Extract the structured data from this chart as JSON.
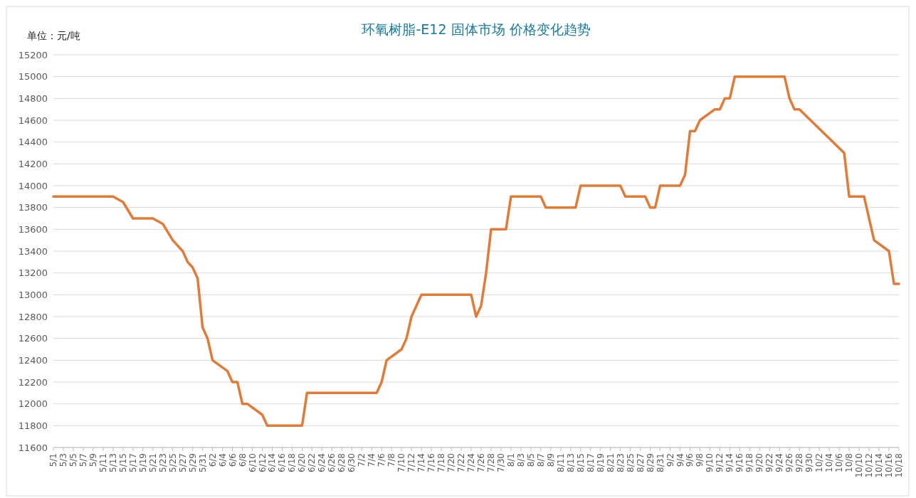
{
  "chart_data": {
    "type": "line",
    "title": "环氧树脂-E12 固体市场 价格变化趋势",
    "annotations": [
      "单位：元/吨"
    ],
    "x": [
      "--05-01",
      "--05-13",
      "--05-15",
      "--05-17",
      "--05-21",
      "--05-23",
      "--05-25",
      "--05-27",
      "--05-28",
      "--05-29",
      "--05-30",
      "--05-31",
      "--06-01",
      "--06-02",
      "--06-05",
      "--06-06",
      "--06-07",
      "--06-08",
      "--06-09",
      "--06-12",
      "--06-13",
      "--06-20",
      "--06-21",
      "--07-05",
      "--07-06",
      "--07-07",
      "--07-10",
      "--07-11",
      "--07-12",
      "--07-14",
      "--07-24",
      "--07-25",
      "--07-26",
      "--07-27",
      "--07-28",
      "--07-31",
      "--08-01",
      "--08-07",
      "--08-08",
      "--08-14",
      "--08-15",
      "--08-23",
      "--08-24",
      "--08-28",
      "--08-29",
      "--08-30",
      "--08-31",
      "--09-04",
      "--09-05",
      "--09-06",
      "--09-07",
      "--09-08",
      "--09-11",
      "--09-12",
      "--09-13",
      "--09-14",
      "--09-15",
      "--09-25",
      "--09-26",
      "--09-27",
      "--09-28",
      "--10-07",
      "--10-08",
      "--10-11",
      "--10-13",
      "--10-16",
      "--10-17",
      "--10-18"
    ],
    "series": [
      {
        "color": "#e07b39",
        "values": [
          13900,
          13900,
          13850,
          13700,
          13700,
          13650,
          13500,
          13400,
          13300,
          13250,
          13150,
          12700,
          12600,
          12400,
          12300,
          12200,
          12200,
          12000,
          12000,
          11900,
          11800,
          11800,
          12100,
          12100,
          12200,
          12400,
          12500,
          12600,
          12800,
          13000,
          13000,
          12800,
          12900,
          13200,
          13600,
          13600,
          13900,
          13900,
          13800,
          13800,
          14000,
          14000,
          13900,
          13900,
          13800,
          13800,
          14000,
          14000,
          14100,
          14500,
          14500,
          14600,
          14700,
          14700,
          14800,
          14800,
          15000,
          15000,
          14800,
          14700,
          14700,
          14300,
          13900,
          13900,
          13500,
          13400,
          13100,
          13100
        ]
      }
    ],
    "xlim": [
      "--05-01",
      "--10-18"
    ],
    "xticks": [
      {
        "value": "--05-01",
        "label": "5/1"
      },
      {
        "value": "--05-03",
        "label": "5/3"
      },
      {
        "value": "--05-05",
        "label": "5/5"
      },
      {
        "value": "--05-07",
        "label": "5/7"
      },
      {
        "value": "--05-09",
        "label": "5/9"
      },
      {
        "value": "--05-11",
        "label": "5/11"
      },
      {
        "value": "--05-13",
        "label": "5/13"
      },
      {
        "value": "--05-15",
        "label": "5/15"
      },
      {
        "value": "--05-17",
        "label": "5/17"
      },
      {
        "value": "--05-19",
        "label": "5/19"
      },
      {
        "value": "--05-21",
        "label": "5/21"
      },
      {
        "value": "--05-23",
        "label": "5/23"
      },
      {
        "value": "--05-25",
        "label": "5/25"
      },
      {
        "value": "--05-27",
        "label": "5/27"
      },
      {
        "value": "--05-29",
        "label": "5/29"
      },
      {
        "value": "--05-31",
        "label": "5/31"
      },
      {
        "value": "--06-02",
        "label": "6/2"
      },
      {
        "value": "--06-04",
        "label": "6/4"
      },
      {
        "value": "--06-06",
        "label": "6/6"
      },
      {
        "value": "--06-08",
        "label": "6/8"
      },
      {
        "value": "--06-10",
        "label": "6/10"
      },
      {
        "value": "--06-12",
        "label": "6/12"
      },
      {
        "value": "--06-14",
        "label": "6/14"
      },
      {
        "value": "--06-16",
        "label": "6/16"
      },
      {
        "value": "--06-18",
        "label": "6/18"
      },
      {
        "value": "--06-20",
        "label": "6/20"
      },
      {
        "value": "--06-22",
        "label": "6/22"
      },
      {
        "value": "--06-24",
        "label": "6/24"
      },
      {
        "value": "--06-26",
        "label": "6/26"
      },
      {
        "value": "--06-28",
        "label": "6/28"
      },
      {
        "value": "--06-30",
        "label": "6/30"
      },
      {
        "value": "--07-02",
        "label": "7/2"
      },
      {
        "value": "--07-04",
        "label": "7/4"
      },
      {
        "value": "--07-06",
        "label": "7/6"
      },
      {
        "value": "--07-08",
        "label": "7/8"
      },
      {
        "value": "--07-10",
        "label": "7/10"
      },
      {
        "value": "--07-12",
        "label": "7/12"
      },
      {
        "value": "--07-14",
        "label": "7/14"
      },
      {
        "value": "--07-16",
        "label": "7/16"
      },
      {
        "value": "--07-18",
        "label": "7/18"
      },
      {
        "value": "--07-20",
        "label": "7/20"
      },
      {
        "value": "--07-22",
        "label": "7/22"
      },
      {
        "value": "--07-24",
        "label": "7/24"
      },
      {
        "value": "--07-26",
        "label": "7/26"
      },
      {
        "value": "--07-28",
        "label": "7/28"
      },
      {
        "value": "--07-30",
        "label": "7/30"
      },
      {
        "value": "--08-01",
        "label": "8/1"
      },
      {
        "value": "--08-03",
        "label": "8/3"
      },
      {
        "value": "--08-05",
        "label": "8/5"
      },
      {
        "value": "--08-07",
        "label": "8/7"
      },
      {
        "value": "--08-09",
        "label": "8/9"
      },
      {
        "value": "--08-11",
        "label": "8/11"
      },
      {
        "value": "--08-13",
        "label": "8/13"
      },
      {
        "value": "--08-15",
        "label": "8/15"
      },
      {
        "value": "--08-17",
        "label": "8/17"
      },
      {
        "value": "--08-19",
        "label": "8/19"
      },
      {
        "value": "--08-21",
        "label": "8/21"
      },
      {
        "value": "--08-23",
        "label": "8/23"
      },
      {
        "value": "--08-25",
        "label": "8/25"
      },
      {
        "value": "--08-27",
        "label": "8/27"
      },
      {
        "value": "--08-29",
        "label": "8/29"
      },
      {
        "value": "--08-31",
        "label": "8/31"
      },
      {
        "value": "--09-02",
        "label": "9/2"
      },
      {
        "value": "--09-04",
        "label": "9/4"
      },
      {
        "value": "--09-06",
        "label": "9/6"
      },
      {
        "value": "--09-08",
        "label": "9/8"
      },
      {
        "value": "--09-10",
        "label": "9/10"
      },
      {
        "value": "--09-12",
        "label": "9/12"
      },
      {
        "value": "--09-14",
        "label": "9/14"
      },
      {
        "value": "--09-16",
        "label": "9/16"
      },
      {
        "value": "--09-18",
        "label": "9/18"
      },
      {
        "value": "--09-20",
        "label": "9/20"
      },
      {
        "value": "--09-22",
        "label": "9/22"
      },
      {
        "value": "--09-24",
        "label": "9/24"
      },
      {
        "value": "--09-26",
        "label": "9/26"
      },
      {
        "value": "--09-28",
        "label": "9/28"
      },
      {
        "value": "--09-30",
        "label": "9/30"
      },
      {
        "value": "--10-02",
        "label": "10/2"
      },
      {
        "value": "--10-04",
        "label": "10/4"
      },
      {
        "value": "--10-06",
        "label": "10/6"
      },
      {
        "value": "--10-08",
        "label": "10/8"
      },
      {
        "value": "--10-10",
        "label": "10/10"
      },
      {
        "value": "--10-12",
        "label": "10/12"
      },
      {
        "value": "--10-14",
        "label": "10/14"
      },
      {
        "value": "--10-16",
        "label": "10/16"
      },
      {
        "value": "--10-18",
        "label": "10/18"
      }
    ],
    "ylim": [
      11600,
      15200
    ],
    "yticks": [
      11600,
      11800,
      12000,
      12200,
      12400,
      12600,
      12800,
      13000,
      13200,
      13400,
      13600,
      13800,
      14000,
      14200,
      14400,
      14600,
      14800,
      15000,
      15200
    ],
    "grid": "y",
    "marker": "none",
    "line_style": "solid"
  }
}
